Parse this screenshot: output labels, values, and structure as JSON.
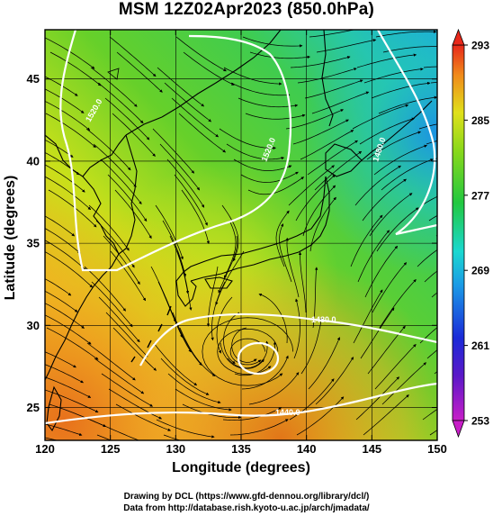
{
  "title": "MSM 12Z02Apr2023 (850.0hPa)",
  "x_axis": {
    "label": "Longitude (degrees)",
    "range": [
      120,
      150
    ],
    "ticks": [
      120,
      125,
      130,
      135,
      140,
      145,
      150
    ]
  },
  "y_axis": {
    "label": "Latitude  (degrees)",
    "range": [
      23,
      48
    ],
    "ticks": [
      25,
      30,
      35,
      40,
      45
    ]
  },
  "colorbar": {
    "range": [
      253,
      293
    ],
    "ticks": [
      253,
      261,
      269,
      277,
      285,
      293
    ],
    "tick_labels": [
      "253",
      "261",
      "269",
      "277",
      "285",
      "293"
    ]
  },
  "contours": [
    {
      "label": "1520.0"
    },
    {
      "label": "1520.0"
    },
    {
      "label": "1480.0"
    },
    {
      "label": "1480.0"
    },
    {
      "label": "1440.0"
    }
  ],
  "credits": {
    "line1": "Drawing by DCL (https://www.gfd-dennou.org/library/dcl/)",
    "line2": "Data from http://database.rish.kyoto-u.ac.jp/arch/jmadata/"
  },
  "map_features": {
    "field": "temperature (K), color shaded",
    "overlays": [
      "streamlines with arrows",
      "geopotential height contours (white)",
      "coastlines"
    ],
    "low_pressure_center": {
      "lon": 135.5,
      "lat": 28.4
    },
    "grid": true
  }
}
